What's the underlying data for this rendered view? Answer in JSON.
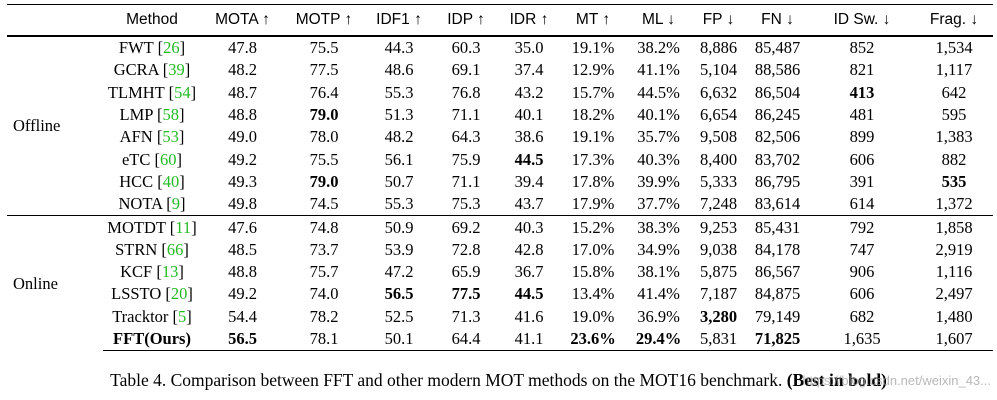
{
  "table": {
    "columns": [
      "Method",
      "MOTA ↑",
      "MOTP ↑",
      "IDF1 ↑",
      "IDP ↑",
      "IDR ↑",
      "MT ↑",
      "ML ↓",
      "FP ↓",
      "FN ↓",
      "ID Sw. ↓",
      "Frag. ↓"
    ],
    "groups": [
      {
        "label": "Offline",
        "rows": [
          {
            "name": "FWT",
            "ref": "26",
            "values": [
              "47.8",
              "75.5",
              "44.3",
              "60.3",
              "35.0",
              "19.1%",
              "38.2%",
              "8,886",
              "85,487",
              "852",
              "1,534"
            ],
            "bold": []
          },
          {
            "name": "GCRA",
            "ref": "39",
            "values": [
              "48.2",
              "77.5",
              "48.6",
              "69.1",
              "37.4",
              "12.9%",
              "41.1%",
              "5,104",
              "88,586",
              "821",
              "1,117"
            ],
            "bold": []
          },
          {
            "name": "TLMHT",
            "ref": "54",
            "values": [
              "48.7",
              "76.4",
              "55.3",
              "76.8",
              "43.2",
              "15.7%",
              "44.5%",
              "6,632",
              "86,504",
              "413",
              "642"
            ],
            "bold": [
              9
            ]
          },
          {
            "name": "LMP",
            "ref": "58",
            "values": [
              "48.8",
              "79.0",
              "51.3",
              "71.1",
              "40.1",
              "18.2%",
              "40.1%",
              "6,654",
              "86,245",
              "481",
              "595"
            ],
            "bold": [
              1
            ]
          },
          {
            "name": "AFN",
            "ref": "53",
            "values": [
              "49.0",
              "78.0",
              "48.2",
              "64.3",
              "38.6",
              "19.1%",
              "35.7%",
              "9,508",
              "82,506",
              "899",
              "1,383"
            ],
            "bold": []
          },
          {
            "name": "eTC",
            "ref": "60",
            "values": [
              "49.2",
              "75.5",
              "56.1",
              "75.9",
              "44.5",
              "17.3%",
              "40.3%",
              "8,400",
              "83,702",
              "606",
              "882"
            ],
            "bold": [
              4
            ]
          },
          {
            "name": "HCC",
            "ref": "40",
            "values": [
              "49.3",
              "79.0",
              "50.7",
              "71.1",
              "39.4",
              "17.8%",
              "39.9%",
              "5,333",
              "86,795",
              "391",
              "535"
            ],
            "bold": [
              1,
              10
            ]
          },
          {
            "name": "NOTA",
            "ref": "9",
            "values": [
              "49.8",
              "74.5",
              "55.3",
              "75.3",
              "43.7",
              "17.9%",
              "37.7%",
              "7,248",
              "83,614",
              "614",
              "1,372"
            ],
            "bold": []
          }
        ]
      },
      {
        "label": "Online",
        "rows": [
          {
            "name": "MOTDT",
            "ref": "11",
            "values": [
              "47.6",
              "74.8",
              "50.9",
              "69.2",
              "40.3",
              "15.2%",
              "38.3%",
              "9,253",
              "85,431",
              "792",
              "1,858"
            ],
            "bold": []
          },
          {
            "name": "STRN",
            "ref": "66",
            "values": [
              "48.5",
              "73.7",
              "53.9",
              "72.8",
              "42.8",
              "17.0%",
              "34.9%",
              "9,038",
              "84,178",
              "747",
              "2,919"
            ],
            "bold": []
          },
          {
            "name": "KCF",
            "ref": "13",
            "values": [
              "48.8",
              "75.7",
              "47.2",
              "65.9",
              "36.7",
              "15.8%",
              "38.1%",
              "5,875",
              "86,567",
              "906",
              "1,116"
            ],
            "bold": []
          },
          {
            "name": "LSSTO",
            "ref": "20",
            "values": [
              "49.2",
              "74.0",
              "56.5",
              "77.5",
              "44.5",
              "13.4%",
              "41.4%",
              "7,187",
              "84,875",
              "606",
              "2,497"
            ],
            "bold": [
              2,
              3,
              4
            ]
          },
          {
            "name": "Tracktor",
            "ref": "5",
            "values": [
              "54.4",
              "78.2",
              "52.5",
              "71.3",
              "41.6",
              "19.0%",
              "36.9%",
              "3,280",
              "79,149",
              "682",
              "1,480"
            ],
            "bold": [
              7
            ]
          },
          {
            "name": "FFT(Ours)",
            "ref": "",
            "name_bold": true,
            "values": [
              "56.5",
              "78.1",
              "50.1",
              "64.4",
              "41.1",
              "23.6%",
              "29.4%",
              "5,831",
              "71,825",
              "1,635",
              "1,607"
            ],
            "bold": [
              0,
              5,
              6,
              8
            ]
          }
        ]
      }
    ]
  },
  "caption": {
    "text": "Table 4. Comparison between FFT and other modern MOT methods on the MOT16 benchmark. ",
    "bold_text": "(Best in bold)"
  },
  "watermark": "https://blog.csdn.net/weixin_43..."
}
